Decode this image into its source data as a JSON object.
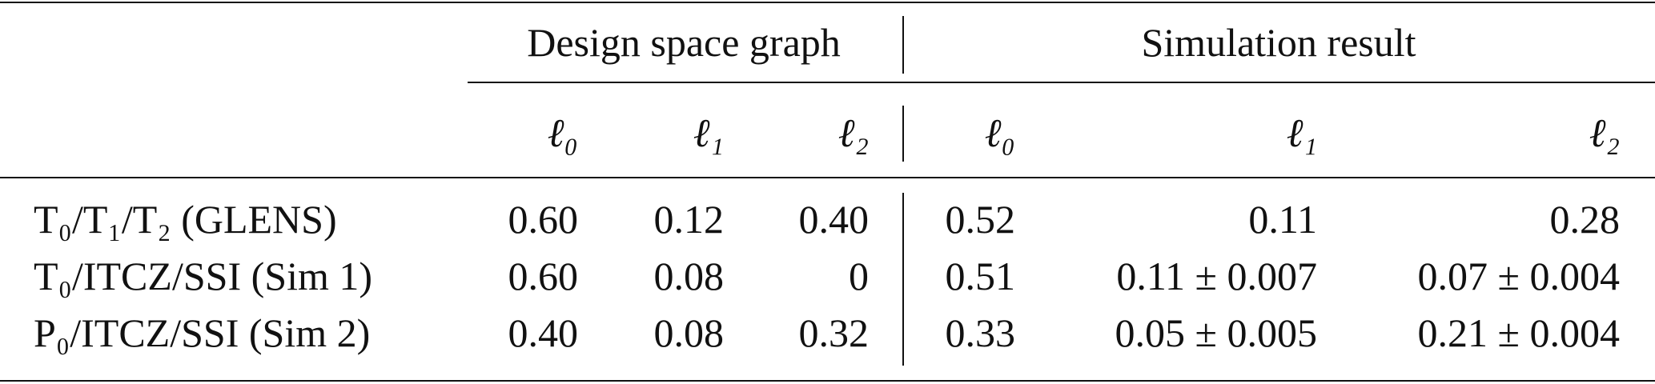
{
  "table": {
    "groups": [
      "Design space graph",
      "Simulation result"
    ],
    "columns": [
      "ℓ₀",
      "ℓ₁",
      "ℓ₂",
      "ℓ₀",
      "ℓ₁",
      "ℓ₂"
    ],
    "rows": [
      {
        "label": "T₀/T₁/T₂ (GLENS)",
        "cells": [
          "0.60",
          "0.12",
          "0.40",
          "0.52",
          "0.11",
          "0.28"
        ]
      },
      {
        "label": "T₀/ITCZ/SSI (Sim 1)",
        "cells": [
          "0.60",
          "0.08",
          "0",
          "0.51",
          "0.11 ± 0.007",
          "0.07 ± 0.004"
        ]
      },
      {
        "label": "P₀/ITCZ/SSI (Sim 2)",
        "cells": [
          "0.40",
          "0.08",
          "0.32",
          "0.33",
          "0.05 ± 0.005",
          "0.21 ± 0.004"
        ]
      }
    ]
  }
}
